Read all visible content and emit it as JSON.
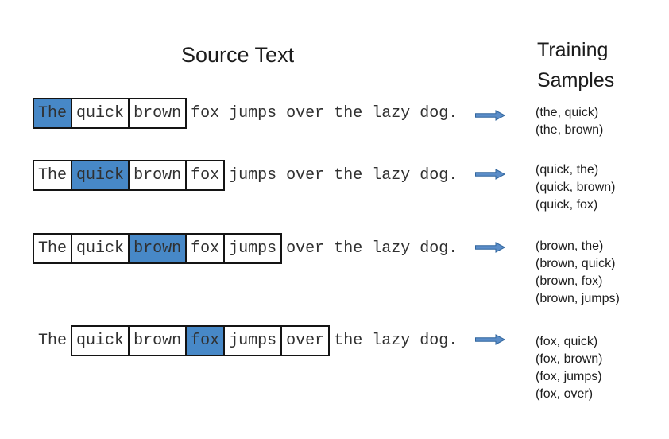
{
  "title": "Source Text",
  "samples_header": {
    "line1": "Training",
    "line2": "Samples"
  },
  "colors": {
    "highlight_fill": "#4788c7",
    "box_border": "#141414",
    "arrow_fill": "#5b8dc8",
    "arrow_stroke": "#31669e",
    "text": "#303030"
  },
  "arrow_icon": "right-arrow-icon",
  "rows": [
    {
      "words": [
        {
          "t": "The",
          "box": true,
          "hl": true
        },
        {
          "t": "quick",
          "box": true
        },
        {
          "t": "brown",
          "box": true
        },
        {
          "t": "fox"
        },
        {
          "t": "jumps"
        },
        {
          "t": "over"
        },
        {
          "t": "the"
        },
        {
          "t": "lazy"
        },
        {
          "t": "dog."
        }
      ],
      "samples": [
        "(the, quick)",
        "(the, brown)"
      ]
    },
    {
      "words": [
        {
          "t": "The",
          "box": true
        },
        {
          "t": "quick",
          "box": true,
          "hl": true
        },
        {
          "t": "brown",
          "box": true
        },
        {
          "t": "fox",
          "box": true
        },
        {
          "t": "jumps"
        },
        {
          "t": "over"
        },
        {
          "t": "the"
        },
        {
          "t": "lazy"
        },
        {
          "t": "dog."
        }
      ],
      "samples": [
        "(quick, the)",
        "(quick, brown)",
        "(quick, fox)"
      ]
    },
    {
      "words": [
        {
          "t": "The",
          "box": true
        },
        {
          "t": "quick",
          "box": true
        },
        {
          "t": "brown",
          "box": true,
          "hl": true
        },
        {
          "t": "fox",
          "box": true
        },
        {
          "t": "jumps",
          "box": true
        },
        {
          "t": "over"
        },
        {
          "t": "the"
        },
        {
          "t": "lazy"
        },
        {
          "t": "dog."
        }
      ],
      "samples": [
        "(brown, the)",
        "(brown, quick)",
        "(brown, fox)",
        "(brown, jumps)"
      ]
    },
    {
      "words": [
        {
          "t": "The"
        },
        {
          "t": "quick",
          "box": true
        },
        {
          "t": "brown",
          "box": true
        },
        {
          "t": "fox",
          "box": true,
          "hl": true
        },
        {
          "t": "jumps",
          "box": true
        },
        {
          "t": "over",
          "box": true
        },
        {
          "t": "the"
        },
        {
          "t": "lazy"
        },
        {
          "t": "dog."
        }
      ],
      "samples": [
        "(fox, quick)",
        "(fox, brown)",
        "(fox, jumps)",
        "(fox, over)"
      ]
    }
  ]
}
